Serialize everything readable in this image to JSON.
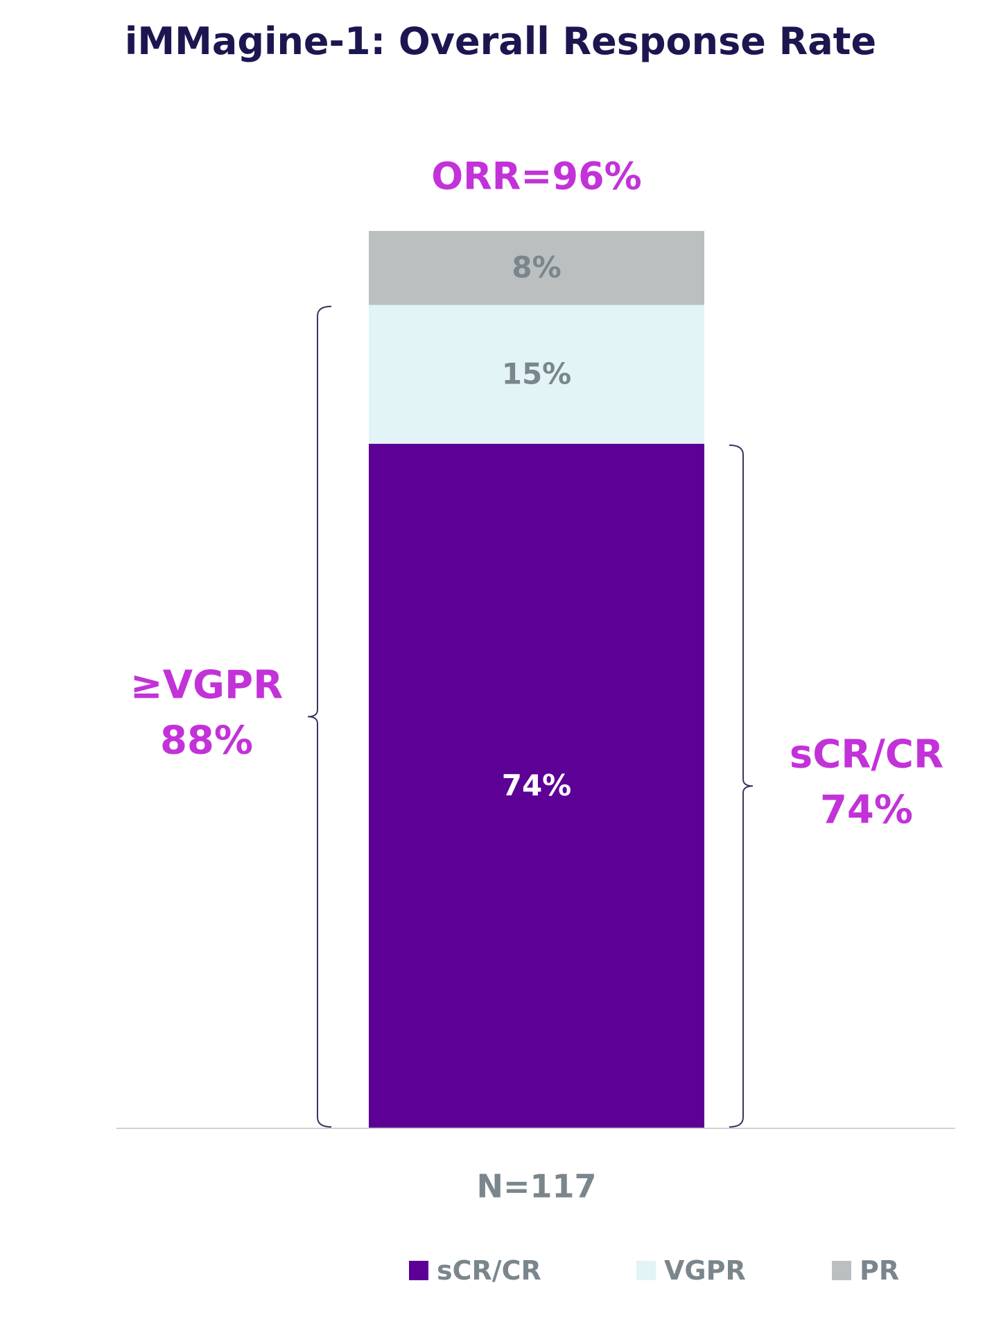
{
  "chart_data": {
    "type": "bar",
    "stacked": true,
    "title": "iMMagine-1: Overall Response Rate",
    "categories": [
      "N=117"
    ],
    "series": [
      {
        "name": "sCR/CR",
        "values": [
          74
        ],
        "labels": [
          "74%"
        ],
        "color": "#5c0096",
        "label_color": "#ffffff"
      },
      {
        "name": "VGPR",
        "values": [
          15
        ],
        "labels": [
          "15%"
        ],
        "color": "#e2f4f5",
        "label_color": "#7a868c"
      },
      {
        "name": "PR",
        "values": [
          8
        ],
        "labels": [
          "8%"
        ],
        "color": "#bcbfbf",
        "label_color": "#7a868c"
      }
    ],
    "total_label": "ORR=96%",
    "annotations": [
      {
        "text_lines": [
          "≥VGPR",
          "88%"
        ],
        "side": "left",
        "spans_series": [
          "sCR/CR",
          "VGPR"
        ]
      },
      {
        "text_lines": [
          "sCR/CR",
          "74%"
        ],
        "side": "right",
        "spans_series": [
          "sCR/CR"
        ]
      }
    ],
    "ylim": [
      0,
      100
    ],
    "grid": false,
    "legend_position": "bottom",
    "colors": {
      "title": "#1c1650",
      "highlight": "#c232d8",
      "axis_text": "#7a868c",
      "axis_line": "#d0d0d0",
      "bracket": "#3a3560"
    }
  }
}
